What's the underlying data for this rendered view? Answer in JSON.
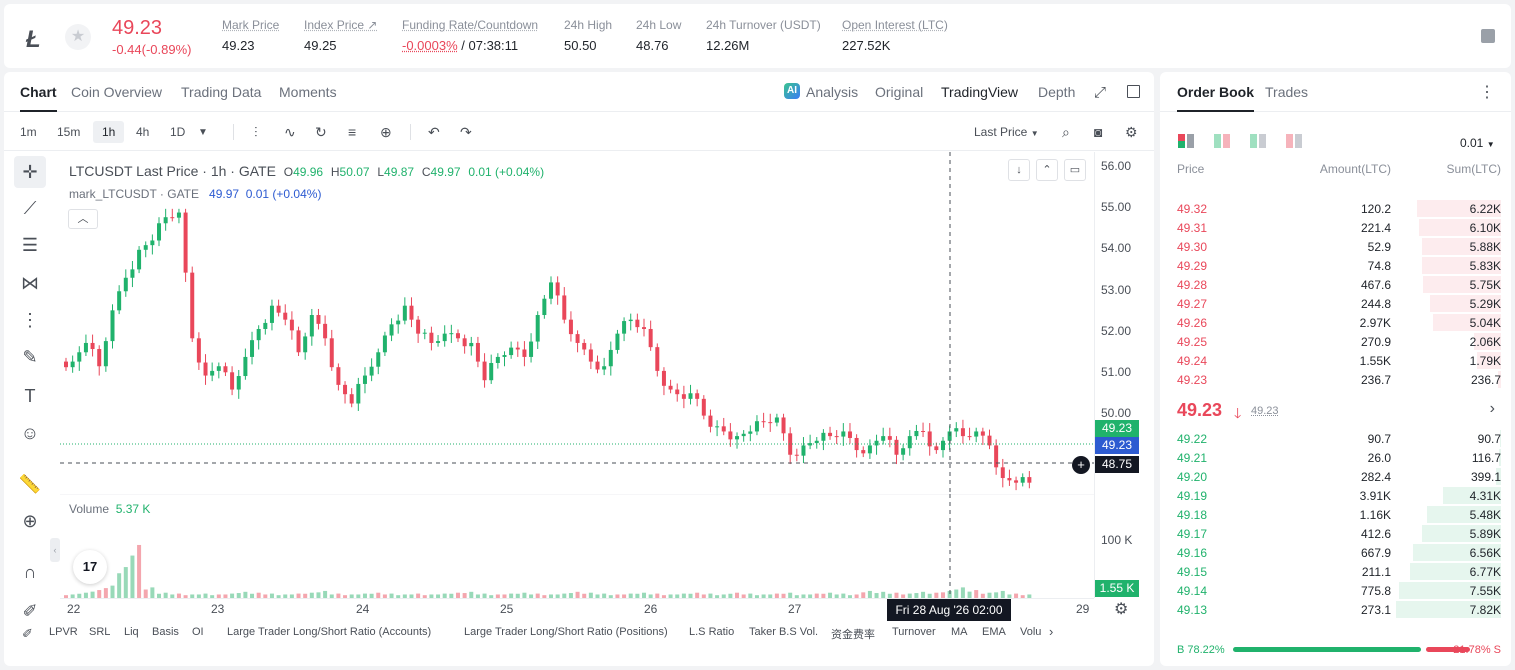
{
  "header": {
    "coin_logo": "Ł",
    "price": "49.23",
    "change": "-0.44(-0.89%)",
    "stats": [
      {
        "label": "Mark Price",
        "value": "49.23"
      },
      {
        "label": "Index Price ↗",
        "value": "49.25"
      },
      {
        "label": "Funding Rate/Countdown",
        "value_red": "-0.0003%",
        "value": " / 07:38:11"
      },
      {
        "label": "24h High",
        "value": "50.50"
      },
      {
        "label": "24h Low",
        "value": "48.76"
      },
      {
        "label": "24h Turnover (USDT)",
        "value": "12.26M"
      },
      {
        "label": "Open Interest (LTC)",
        "value": "227.52K"
      }
    ]
  },
  "chart_tabs": [
    "Chart",
    "Coin Overview",
    "Trading Data",
    "Moments"
  ],
  "view_tabs": {
    "analysis": "Analysis",
    "original": "Original",
    "tradingview": "TradingView",
    "depth": "Depth"
  },
  "timeframes": [
    "1m",
    "15m",
    "1h",
    "4h",
    "1D"
  ],
  "active_timeframe": "1h",
  "last_price_label": "Last Price",
  "legend": {
    "symbol": "LTCUSDT Last Price · 1h · GATE",
    "o_label": "O",
    "o": "49.96",
    "h_label": "H",
    "h": "50.07",
    "l_label": "L",
    "l": "49.87",
    "c_label": "C",
    "c": "49.97",
    "change": "0.01 (+0.04%)",
    "mark_label": "mark_LTCUSDT · GATE",
    "mark_value": "49.97",
    "mark_change": "0.01 (+0.04%)"
  },
  "volume_legend": {
    "label": "Volume",
    "value": "5.37 K"
  },
  "tv_logo": "17",
  "chart_data": {
    "type": "candlestick",
    "title": "LTCUSDT Last Price · 1h · GATE",
    "xlabel": "",
    "ylabel": "",
    "y_ticks": [
      "56.00",
      "55.00",
      "54.00",
      "53.00",
      "52.00",
      "51.00",
      "50.00"
    ],
    "ylim": [
      49.0,
      56.3
    ],
    "x_ticks": [
      "22",
      "23",
      "24",
      "25",
      "26",
      "27",
      "29"
    ],
    "crosshair_x_label": "Fri 28 Aug '26  02:00",
    "crosshair_y_label": "48.75",
    "last_price_badge": "49.23",
    "mark_price_badge": "49.23",
    "volume_ticks": [
      "100 K"
    ],
    "volume_badge": "1.55 K",
    "series": [
      {
        "name": "LTCUSDT",
        "close_path": [
          51.8,
          52.2,
          51.7,
          52.9,
          53.6,
          54.2,
          54.4,
          54.9,
          55.0,
          52.3,
          51.5,
          51.7,
          51.2,
          51.9,
          52.5,
          53.0,
          52.7,
          52.0,
          52.8,
          52.3,
          51.3,
          50.9,
          51.5,
          52.0,
          52.6,
          53.0,
          52.4,
          52.2,
          52.4,
          52.3,
          52.2,
          51.4,
          51.9,
          52.1,
          51.9,
          52.8,
          53.5,
          52.7,
          52.2,
          51.8,
          51.7,
          52.4,
          52.7,
          52.5,
          51.6,
          51.2,
          51.0,
          51.0,
          50.4,
          50.3,
          50.2,
          50.3,
          50.5,
          50.6,
          49.8,
          50.0,
          50.1,
          50.2,
          50.3,
          49.9,
          50.0,
          50.2,
          49.8,
          50.2,
          50.3,
          49.9,
          50.3,
          50.2,
          50.3,
          50.0,
          49.3,
          49.2,
          49.2
        ]
      }
    ],
    "volume_series": [
      4,
      6,
      9,
      14,
      35,
      60,
      12,
      6,
      5,
      4,
      5,
      4,
      5,
      7,
      6,
      5,
      4,
      5,
      6,
      8,
      5,
      4,
      5,
      6,
      5,
      4,
      5,
      4,
      5,
      6,
      7,
      5,
      4,
      5,
      6,
      5,
      4,
      5,
      7,
      6,
      5,
      4,
      5,
      6,
      5,
      4,
      5,
      6,
      5,
      4,
      6,
      5,
      4,
      5,
      6,
      4,
      5,
      6,
      5,
      4,
      8,
      7,
      6,
      5,
      7,
      6,
      8,
      12,
      9,
      6,
      8,
      5,
      4
    ],
    "grid": false,
    "legend_position": "top-left"
  },
  "indicators": [
    "LPVR",
    "SRL",
    "Liq",
    "Basis",
    "OI",
    "Large Trader Long/Short Ratio (Accounts)",
    "Large Trader Long/Short Ratio (Positions)",
    "L.S Ratio",
    "Taker B.S Vol.",
    "资金费率",
    "Turnover",
    "MA",
    "EMA",
    "Volu"
  ],
  "orderbook": {
    "tabs": [
      "Order Book",
      "Trades"
    ],
    "precision": "0.01",
    "headers": {
      "price": "Price",
      "amount": "Amount(LTC)",
      "sum": "Sum(LTC)"
    },
    "asks": [
      {
        "price": "49.32",
        "amount": "120.2",
        "sum": "6.22K",
        "depth": 0.8
      },
      {
        "price": "49.31",
        "amount": "221.4",
        "sum": "6.10K",
        "depth": 0.78
      },
      {
        "price": "49.30",
        "amount": "52.9",
        "sum": "5.88K",
        "depth": 0.75
      },
      {
        "price": "49.29",
        "amount": "74.8",
        "sum": "5.83K",
        "depth": 0.75
      },
      {
        "price": "49.28",
        "amount": "467.6",
        "sum": "5.75K",
        "depth": 0.74
      },
      {
        "price": "49.27",
        "amount": "244.8",
        "sum": "5.29K",
        "depth": 0.68
      },
      {
        "price": "49.26",
        "amount": "2.97K",
        "sum": "5.04K",
        "depth": 0.65
      },
      {
        "price": "49.25",
        "amount": "270.9",
        "sum": "2.06K",
        "depth": 0.26
      },
      {
        "price": "49.24",
        "amount": "1.55K",
        "sum": "1.79K",
        "depth": 0.23
      },
      {
        "price": "49.23",
        "amount": "236.7",
        "sum": "236.7",
        "depth": 0.03
      }
    ],
    "mid": {
      "price": "49.23",
      "arrow": "🡓",
      "mark": "49.23",
      "chevron": "›"
    },
    "bids": [
      {
        "price": "49.22",
        "amount": "90.7",
        "sum": "90.7",
        "depth": 0.01
      },
      {
        "price": "49.21",
        "amount": "26.0",
        "sum": "116.7",
        "depth": 0.015
      },
      {
        "price": "49.20",
        "amount": "282.4",
        "sum": "399.1",
        "depth": 0.05
      },
      {
        "price": "49.19",
        "amount": "3.91K",
        "sum": "4.31K",
        "depth": 0.55
      },
      {
        "price": "49.18",
        "amount": "1.16K",
        "sum": "5.48K",
        "depth": 0.7
      },
      {
        "price": "49.17",
        "amount": "412.6",
        "sum": "5.89K",
        "depth": 0.75
      },
      {
        "price": "49.16",
        "amount": "667.9",
        "sum": "6.56K",
        "depth": 0.84
      },
      {
        "price": "49.15",
        "amount": "211.1",
        "sum": "6.77K",
        "depth": 0.87
      },
      {
        "price": "49.14",
        "amount": "775.8",
        "sum": "7.55K",
        "depth": 0.97
      },
      {
        "price": "49.13",
        "amount": "273.1",
        "sum": "7.82K",
        "depth": 1.0
      }
    ],
    "ratio": {
      "buy_label": "B 78.22%",
      "sell_label": "21.78% S",
      "buy_fraction": 0.7822
    }
  },
  "colors": {
    "up": "#20b26c",
    "down": "#e9475a",
    "mark": "#2d5bd1"
  }
}
